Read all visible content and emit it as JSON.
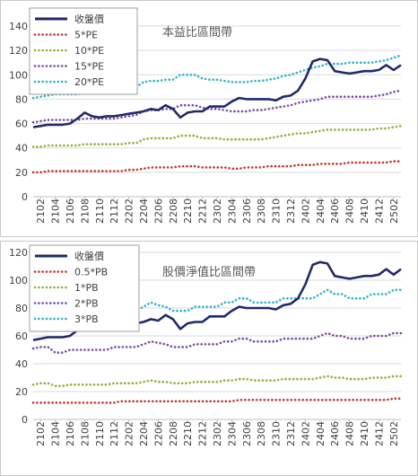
{
  "chart_data": [
    {
      "type": "line",
      "title": "本益比區間帶",
      "ylim": [
        0,
        140
      ],
      "yticks": [
        "0",
        "20",
        "40",
        "60",
        "80",
        "100",
        "120",
        "140"
      ],
      "grid": true,
      "legend_position": "top-left",
      "x": [
        "2101",
        "2102",
        "2103",
        "2104",
        "2105",
        "2106",
        "2107",
        "2108",
        "2109",
        "2110",
        "2111",
        "2112",
        "2201",
        "2202",
        "2203",
        "2204",
        "2205",
        "2206",
        "2207",
        "2208",
        "2209",
        "2210",
        "2211",
        "2212",
        "2301",
        "2302",
        "2303",
        "2304",
        "2305",
        "2306",
        "2307",
        "2308",
        "2309",
        "2310",
        "2311",
        "2312",
        "2401",
        "2402",
        "2403",
        "2404",
        "2405",
        "2406",
        "2407",
        "2408",
        "2409",
        "2410",
        "2411",
        "2412",
        "2501",
        "2502",
        "2503"
      ],
      "xticks": [
        "2102",
        "2104",
        "2106",
        "2108",
        "2110",
        "2112",
        "2202",
        "2204",
        "2206",
        "2208",
        "2210",
        "2212",
        "2302",
        "2304",
        "2306",
        "2308",
        "2310",
        "2312",
        "2402",
        "2404",
        "2406",
        "2408",
        "2410",
        "2412",
        "2502"
      ],
      "series": [
        {
          "name": "收盤價",
          "color": "#1f2a6b",
          "style": "solid",
          "values": [
            57,
            58,
            59,
            59,
            59,
            60,
            64,
            69,
            66,
            65,
            66,
            66,
            67,
            68,
            69,
            70,
            72,
            71,
            75,
            72,
            65,
            69,
            70,
            70,
            74,
            74,
            74,
            78,
            81,
            80,
            80,
            80,
            80,
            79,
            82,
            83,
            87,
            97,
            111,
            113,
            112,
            103,
            102,
            101,
            102,
            103,
            103,
            104,
            108,
            104,
            108
          ]
        },
        {
          "name": "5*PE",
          "color": "#c0392b",
          "style": "dotted",
          "values": [
            20,
            20,
            21,
            21,
            21,
            21,
            21,
            21,
            21,
            21,
            21,
            21,
            21,
            22,
            22,
            23,
            24,
            24,
            24,
            24,
            25,
            25,
            25,
            24,
            24,
            24,
            24,
            23,
            23,
            24,
            24,
            24,
            25,
            25,
            25,
            25,
            26,
            26,
            26,
            27,
            27,
            27,
            27,
            28,
            28,
            28,
            28,
            28,
            28,
            29,
            29
          ]
        },
        {
          "name": "10*PE",
          "color": "#8db33a",
          "style": "dotted",
          "values": [
            41,
            41,
            42,
            42,
            42,
            42,
            42,
            43,
            43,
            43,
            43,
            43,
            43,
            44,
            44,
            47,
            48,
            48,
            48,
            48,
            50,
            50,
            50,
            48,
            48,
            48,
            47,
            47,
            47,
            47,
            47,
            47,
            48,
            49,
            50,
            51,
            52,
            52,
            53,
            54,
            55,
            55,
            55,
            55,
            55,
            55,
            55,
            56,
            56,
            57,
            58
          ]
        },
        {
          "name": "15*PE",
          "color": "#7b4fa0",
          "style": "dotted",
          "values": [
            61,
            62,
            63,
            63,
            63,
            63,
            63,
            64,
            64,
            64,
            64,
            64,
            65,
            66,
            67,
            70,
            71,
            71,
            72,
            72,
            75,
            75,
            75,
            73,
            72,
            72,
            71,
            70,
            70,
            70,
            71,
            71,
            72,
            73,
            74,
            75,
            77,
            78,
            79,
            80,
            82,
            82,
            82,
            82,
            82,
            82,
            82,
            83,
            84,
            86,
            87
          ]
        },
        {
          "name": "20*PE",
          "color": "#2fb3c9",
          "style": "dotted",
          "values": [
            81,
            82,
            83,
            84,
            84,
            84,
            84,
            85,
            85,
            86,
            86,
            86,
            87,
            88,
            90,
            94,
            95,
            95,
            96,
            96,
            100,
            100,
            100,
            97,
            96,
            96,
            95,
            94,
            94,
            94,
            95,
            95,
            96,
            97,
            99,
            100,
            102,
            104,
            106,
            107,
            109,
            109,
            109,
            110,
            110,
            110,
            110,
            111,
            112,
            114,
            116
          ]
        }
      ]
    },
    {
      "type": "line",
      "title": "股價淨值比區間帶",
      "ylim": [
        0,
        120
      ],
      "yticks": [
        "0",
        "20",
        "40",
        "60",
        "80",
        "100",
        "120"
      ],
      "grid": true,
      "legend_position": "top-left",
      "x": [
        "2101",
        "2102",
        "2103",
        "2104",
        "2105",
        "2106",
        "2107",
        "2108",
        "2109",
        "2110",
        "2111",
        "2112",
        "2201",
        "2202",
        "2203",
        "2204",
        "2205",
        "2206",
        "2207",
        "2208",
        "2209",
        "2210",
        "2211",
        "2212",
        "2301",
        "2302",
        "2303",
        "2304",
        "2305",
        "2306",
        "2307",
        "2308",
        "2309",
        "2310",
        "2311",
        "2312",
        "2401",
        "2402",
        "2403",
        "2404",
        "2405",
        "2406",
        "2407",
        "2408",
        "2409",
        "2410",
        "2411",
        "2412",
        "2501",
        "2502",
        "2503"
      ],
      "xticks": [
        "2102",
        "2104",
        "2106",
        "2108",
        "2110",
        "2112",
        "2202",
        "2204",
        "2206",
        "2208",
        "2210",
        "2212",
        "2302",
        "2304",
        "2306",
        "2308",
        "2310",
        "2312",
        "2402",
        "2404",
        "2406",
        "2408",
        "2410",
        "2412",
        "2502"
      ],
      "series": [
        {
          "name": "收盤價",
          "color": "#1f2a6b",
          "style": "solid",
          "values": [
            57,
            58,
            59,
            59,
            59,
            60,
            64,
            69,
            66,
            65,
            66,
            66,
            67,
            68,
            69,
            70,
            72,
            71,
            75,
            72,
            65,
            69,
            70,
            70,
            74,
            74,
            74,
            78,
            81,
            80,
            80,
            80,
            80,
            79,
            82,
            83,
            87,
            97,
            111,
            113,
            112,
            103,
            102,
            101,
            102,
            103,
            103,
            104,
            108,
            104,
            108
          ]
        },
        {
          "name": "0.5*PB",
          "color": "#c0392b",
          "style": "dotted",
          "values": [
            12,
            12,
            12,
            12,
            12,
            12,
            12,
            12,
            12,
            12,
            12,
            12,
            13,
            13,
            13,
            13,
            13,
            13,
            13,
            13,
            13,
            13,
            13,
            13,
            13,
            13,
            13,
            13,
            14,
            14,
            14,
            14,
            14,
            14,
            14,
            14,
            14,
            14,
            14,
            14,
            14,
            14,
            14,
            14,
            14,
            14,
            14,
            14,
            14,
            15,
            15
          ]
        },
        {
          "name": "1*PB",
          "color": "#8db33a",
          "style": "dotted",
          "values": [
            25,
            26,
            26,
            24,
            24,
            25,
            25,
            25,
            25,
            25,
            25,
            26,
            26,
            26,
            26,
            27,
            28,
            27,
            27,
            26,
            26,
            26,
            27,
            27,
            27,
            27,
            28,
            28,
            29,
            29,
            28,
            28,
            28,
            28,
            29,
            29,
            29,
            29,
            29,
            30,
            31,
            30,
            30,
            29,
            29,
            29,
            30,
            30,
            30,
            31,
            31
          ]
        },
        {
          "name": "2*PB",
          "color": "#7b4fa0",
          "style": "dotted",
          "values": [
            51,
            52,
            52,
            48,
            48,
            50,
            50,
            50,
            50,
            50,
            50,
            52,
            52,
            52,
            52,
            54,
            56,
            55,
            54,
            52,
            52,
            52,
            54,
            54,
            54,
            54,
            56,
            56,
            58,
            58,
            56,
            56,
            56,
            56,
            58,
            58,
            58,
            58,
            58,
            60,
            62,
            60,
            60,
            58,
            58,
            58,
            60,
            60,
            60,
            62,
            62
          ]
        },
        {
          "name": "3*PB",
          "color": "#2fb3c9",
          "style": "dotted",
          "values": [
            76,
            78,
            78,
            72,
            72,
            75,
            75,
            75,
            75,
            75,
            75,
            78,
            78,
            78,
            78,
            81,
            84,
            82,
            81,
            78,
            78,
            78,
            81,
            81,
            81,
            81,
            84,
            84,
            87,
            87,
            84,
            84,
            84,
            84,
            87,
            87,
            87,
            87,
            87,
            90,
            93,
            90,
            90,
            87,
            87,
            87,
            90,
            90,
            90,
            93,
            93
          ]
        }
      ]
    }
  ]
}
